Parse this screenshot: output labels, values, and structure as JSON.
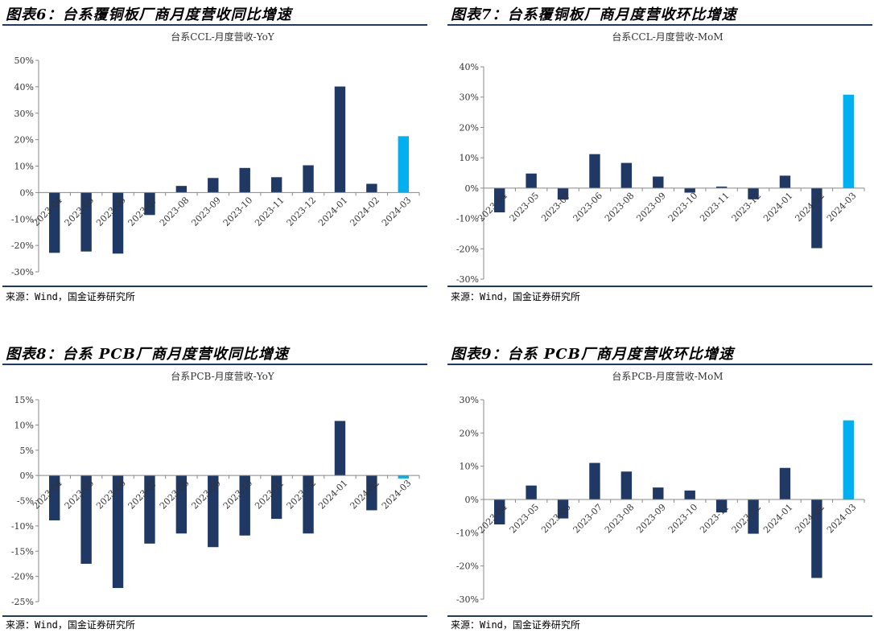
{
  "colors": {
    "bar": "#1f3864",
    "highlight": "#00b0f0",
    "rule": "#1f3a68"
  },
  "source_text": "来源：Wind，国金证券研究所",
  "panels": [
    {
      "figure_title": "图表6：台系覆铜板厂商月度营收同比增速"
    },
    {
      "figure_title": "图表7：台系覆铜板厂商月度营收环比增速"
    },
    {
      "figure_title": "图表8：台系 PCB厂商月度营收同比增速"
    },
    {
      "figure_title": "图表9：台系 PCB厂商月度营收环比增速"
    }
  ],
  "chart_data": [
    {
      "type": "bar",
      "title": "台系CCL-月度营收-YoY",
      "categories": [
        "2023-04",
        "2023-05",
        "2023-06",
        "2023-07",
        "2023-08",
        "2023-09",
        "2023-10",
        "2023-11",
        "2023-12",
        "2024-01",
        "2024-02",
        "2024-03"
      ],
      "values": [
        -22.8,
        -22.3,
        -23.1,
        -8.5,
        2.5,
        5.5,
        9.3,
        5.8,
        10.3,
        40.1,
        3.3,
        21.3
      ],
      "ylim": [
        -30,
        50
      ],
      "yticks": [
        -30,
        -20,
        -10,
        0,
        10,
        20,
        30,
        40,
        50
      ],
      "highlight_index": 11,
      "xlabel": "",
      "ylabel": "",
      "grid": false,
      "legend": "none"
    },
    {
      "type": "bar",
      "title": "台系CCL-月度营收-MoM",
      "categories": [
        "2023-04",
        "2023-05",
        "2023-07",
        "2023-06",
        "2023-08",
        "2023-09",
        "2023-10",
        "2023-11",
        "2023-12",
        "2024-01",
        "2024-02",
        "2024-03"
      ],
      "values": [
        -8.0,
        4.8,
        -3.8,
        11.2,
        8.3,
        3.8,
        -1.5,
        0.5,
        -3.7,
        4.1,
        -19.8,
        30.8
      ],
      "ylim": [
        -30,
        40
      ],
      "yticks": [
        -30,
        -20,
        -10,
        0,
        10,
        20,
        30,
        40
      ],
      "highlight_index": 11,
      "xlabel": "",
      "ylabel": "",
      "grid": false,
      "legend": "none"
    },
    {
      "type": "bar",
      "title": "台系PCB-月度营收-YoY",
      "categories": [
        "2023-04",
        "2023-05",
        "2023-06",
        "2023-07",
        "2023-08",
        "2023-09",
        "2023-10",
        "2023-11",
        "2023-12",
        "2024-01",
        "2024-02",
        "2024-03"
      ],
      "values": [
        -8.9,
        -17.5,
        -22.3,
        -13.5,
        -11.5,
        -14.2,
        -11.9,
        -8.6,
        -11.5,
        10.8,
        -6.9,
        -0.6
      ],
      "ylim": [
        -25,
        15
      ],
      "yticks": [
        -25,
        -20,
        -15,
        -10,
        -5,
        0,
        5,
        10,
        15
      ],
      "highlight_index": 11,
      "xlabel": "",
      "ylabel": "",
      "grid": false,
      "legend": "none"
    },
    {
      "type": "bar",
      "title": "台系PCB-月度营收-MoM",
      "categories": [
        "2023-04",
        "2023-05",
        "2023-06",
        "2023-07",
        "2023-08",
        "2023-09",
        "2023-10",
        "2023-11",
        "2023-12",
        "2024-01",
        "2024-02",
        "2024-03"
      ],
      "values": [
        -7.5,
        4.2,
        -5.7,
        11.0,
        8.4,
        3.6,
        2.7,
        -3.9,
        -10.3,
        9.5,
        -23.6,
        23.8
      ],
      "ylim": [
        -30,
        30
      ],
      "yticks": [
        -30,
        -20,
        -10,
        0,
        10,
        20,
        30
      ],
      "highlight_index": 11,
      "xlabel": "",
      "ylabel": "",
      "grid": false,
      "legend": "none"
    }
  ]
}
